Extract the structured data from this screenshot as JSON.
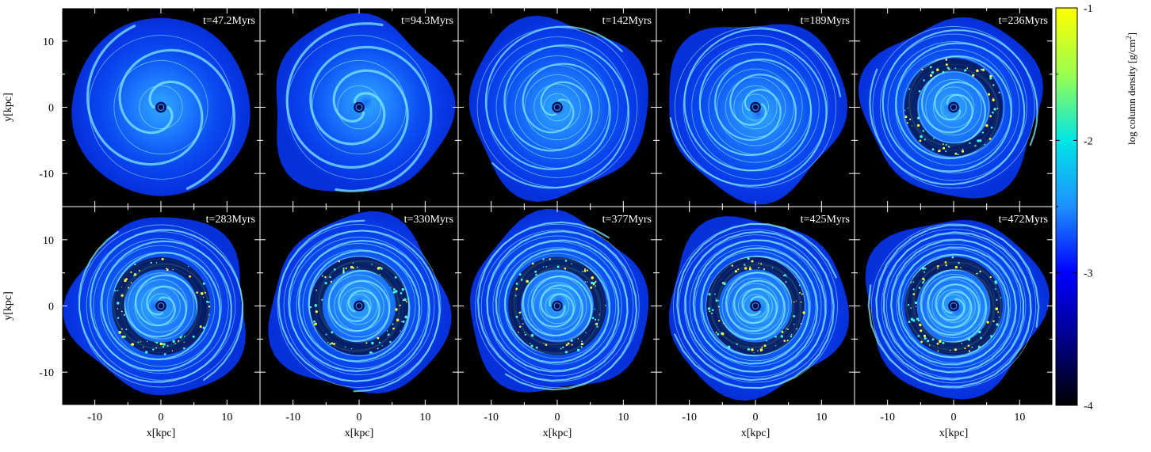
{
  "chart_data": {
    "type": "heatmap",
    "description_rows": 2,
    "description_cols": 5,
    "panels": [
      {
        "time_label": "t=47.2Myrs",
        "time_myr": 47.2,
        "arms": 2,
        "ring": false
      },
      {
        "time_label": "t=94.3Myrs",
        "time_myr": 94.3,
        "arms": 2,
        "ring": false
      },
      {
        "time_label": "t=142Myrs",
        "time_myr": 142,
        "arms": 2,
        "ring": false
      },
      {
        "time_label": "t=189Myrs",
        "time_myr": 189,
        "arms": 2,
        "ring": false
      },
      {
        "time_label": "t=236Myrs",
        "time_myr": 236,
        "arms": 2,
        "ring": true
      },
      {
        "time_label": "t=283Myrs",
        "time_myr": 283,
        "arms": 2,
        "ring": true
      },
      {
        "time_label": "t=330Myrs",
        "time_myr": 330,
        "arms": 2,
        "ring": true
      },
      {
        "time_label": "t=377Myrs",
        "time_myr": 377,
        "arms": 2,
        "ring": true
      },
      {
        "time_label": "t=425Myrs",
        "time_myr": 425,
        "arms": 2,
        "ring": true
      },
      {
        "time_label": "t=472Myrs",
        "time_myr": 472,
        "arms": 2,
        "ring": true
      }
    ],
    "xlabel": "x[kpc]",
    "ylabel": "y[kpc]",
    "xlim": [
      -15,
      15
    ],
    "ylim": [
      -15,
      15
    ],
    "major_ticks": [
      -10,
      0,
      10
    ],
    "tick_labels": [
      "-10",
      "0",
      "10"
    ],
    "colorbar": {
      "label": "log column density [g/cm",
      "label_superscript": "2",
      "label_close": "]",
      "range": [
        -4,
        -1
      ],
      "ticks": [
        -1,
        -2,
        -3,
        -4
      ],
      "tick_labels": [
        "-1",
        "-2",
        "-3",
        "-4"
      ],
      "stops": [
        "#000000",
        "#00008a",
        "#0000ff",
        "#1e90ff",
        "#00e5e5",
        "#9aff50",
        "#ffff00"
      ]
    },
    "disk_radius_kpc": 13.5
  }
}
